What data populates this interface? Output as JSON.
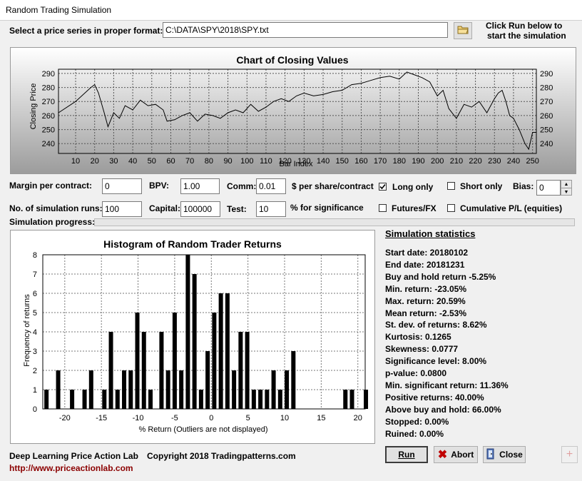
{
  "window": {
    "title": "Random Trading Simulation"
  },
  "series": {
    "label": "Select a price series in proper format:",
    "path": "C:\\DATA\\SPY\\2018\\SPY.txt",
    "hint_line1": "Click Run below to",
    "hint_line2": "start the simulation"
  },
  "closing_chart": {
    "title": "Chart of Closing Values",
    "ylabel": "Closing Price",
    "xlabel": "Bar Index",
    "yticks": [
      "290",
      "280",
      "270",
      "260",
      "250",
      "240"
    ],
    "xticks": [
      "10",
      "20",
      "30",
      "40",
      "50",
      "60",
      "70",
      "80",
      "90",
      "100",
      "110",
      "120",
      "130",
      "140",
      "150",
      "160",
      "170",
      "180",
      "190",
      "200",
      "210",
      "220",
      "230",
      "240",
      "250"
    ]
  },
  "params": {
    "margin_label": "Margin per contract:",
    "margin_value": "0",
    "bpv_label": "BPV:",
    "bpv_value": "1.00",
    "comm_label": "Comm:",
    "comm_value": "0.01",
    "comm_unit": "$ per share/contract",
    "long_only_label": "Long only",
    "short_only_label": "Short only",
    "bias_label": "Bias:",
    "bias_value": "0",
    "runs_label": "No. of simulation runs:",
    "runs_value": "100",
    "capital_label": "Capital:",
    "capital_value": "100000",
    "test_label": "Test:",
    "test_value": "10",
    "test_unit": "% for significance",
    "futures_label": "Futures/FX",
    "cumulative_label": "Cumulative P/L (equities)",
    "progress_label": "Simulation progress:"
  },
  "checkboxes": {
    "long_only": true,
    "short_only": false,
    "futures": false,
    "cumulative": false
  },
  "chart_data": {
    "type": "bar",
    "title": "Histogram of Random Trader Returns",
    "xlabel": "% Return (Outliers are not displayed)",
    "ylabel": "Frequency of returns",
    "xlim": [
      -23,
      21
    ],
    "ylim": [
      0,
      8
    ],
    "xticks": [
      "-20",
      "-15",
      "-10",
      "-5",
      "0",
      "5",
      "10",
      "15",
      "20"
    ],
    "yticks": [
      "0",
      "1",
      "2",
      "3",
      "4",
      "5",
      "6",
      "7",
      "8"
    ],
    "x": [
      -22.5,
      -20.9,
      -19,
      -17.3,
      -16.4,
      -14.6,
      -13.7,
      -12.8,
      -11.9,
      -11,
      -10.1,
      -9.2,
      -8.3,
      -6.8,
      -5.9,
      -5,
      -4.1,
      -3.2,
      -2.3,
      -1.4,
      -0.5,
      0.4,
      1.3,
      2.2,
      3.1,
      4,
      4.9,
      5.8,
      6.7,
      7.6,
      8.5,
      9.4,
      10.3,
      11.2,
      18.3,
      19.2,
      21.1
    ],
    "values": [
      1,
      2,
      1,
      1,
      2,
      1,
      4,
      1,
      2,
      2,
      5,
      4,
      1,
      4,
      2,
      5,
      2,
      8,
      7,
      1,
      3,
      5,
      6,
      6,
      2,
      4,
      4,
      1,
      1,
      1,
      2,
      1,
      2,
      3,
      1,
      1,
      1
    ]
  },
  "stats": {
    "heading": "Simulation statistics",
    "lines": [
      "Start date: 20180102",
      "End date:  20181231",
      "Buy and hold return  -5.25%",
      "Min. return:  -23.05%",
      "Max. return:  20.59%",
      "Mean return:  -2.53%",
      "St. dev. of returns:  8.62%",
      "Kurtosis:  0.1265",
      "Skewness:  0.0777",
      "Significance level:  8.00%",
      "p-value:  0.0800",
      "Min. significant return: 11.36%",
      "Positive returns:  40.00%",
      "Above buy and hold:  66.00%",
      "Stopped:  0.00%",
      "Ruined:   0.00%"
    ]
  },
  "footer": {
    "lab": "Deep Learning Price Action Lab",
    "copyright": "Copyright 2018 Tradingpatterns.com",
    "url": "http://www.priceactionlab.com"
  },
  "buttons": {
    "run": "Run",
    "abort": "Abort",
    "close": "Close"
  }
}
